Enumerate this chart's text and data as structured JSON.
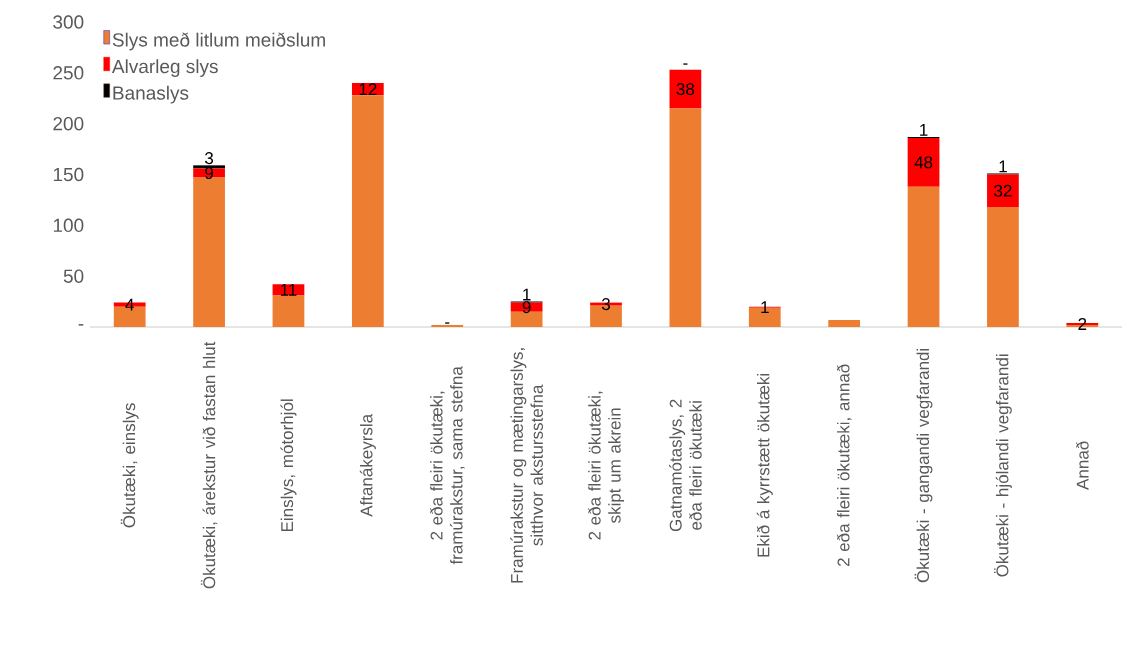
{
  "chart_data": {
    "type": "bar",
    "stacked": true,
    "legend": "top left",
    "categories": [
      "Ökutæki, einslys",
      "Ökutæki, árekstur við fastan hlut",
      "Einslys, mótorhjól",
      "Aftanákeyrsla",
      "2 eða fleiri ökutæki, framúrakstur, sama stefna",
      "Framúrakstur og mætingarslys, sitthvor akstursstefna",
      "2 eða fleiri ökutæki, skipt um akrein",
      "Gatnamótaslys, 2 eða fleiri ökutæki",
      "Ekið á kyrrstætt ökutæki",
      "2 eða fleiri ökutæki, annað",
      "Ökutæki - gangandi vegfarandi",
      "Ökutæki - hjólandi vegfarandi",
      "Annað"
    ],
    "ylim": [
      0,
      300
    ],
    "yticks": [
      {
        "value": 0,
        "label": "-"
      },
      50,
      100,
      150,
      200,
      250,
      300
    ],
    "series": [
      {
        "name": "Slys með litlum meiðslum",
        "color": "#ed7d31",
        "values": [
          20,
          147,
          31,
          228,
          2,
          15,
          21,
          215,
          19,
          7,
          138,
          118,
          2
        ]
      },
      {
        "name": "Alvarleg slys",
        "color": "#ff0000",
        "values": [
          4,
          9,
          11,
          12,
          0,
          9,
          3,
          38,
          1,
          0,
          48,
          32,
          2
        ],
        "value_labels": [
          "4",
          "9",
          "11",
          "12",
          "-",
          "9",
          "3",
          "38",
          "1",
          null,
          "48",
          "32",
          "2"
        ]
      },
      {
        "name": "Banaslys",
        "color": "#000000",
        "values": [
          0,
          3,
          0,
          0,
          0,
          1,
          0,
          0,
          0,
          0,
          1,
          1,
          0
        ],
        "value_labels": [
          null,
          "3",
          null,
          null,
          null,
          "1",
          null,
          "-",
          null,
          null,
          "1",
          "1",
          null
        ]
      }
    ]
  }
}
